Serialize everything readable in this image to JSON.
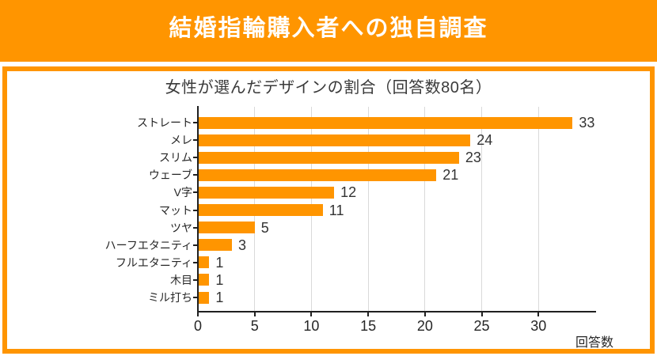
{
  "header": {
    "title": "結婚指輪購入者への独自調査"
  },
  "colors": {
    "accent": "#ff9500",
    "banner_text": "#ffffff",
    "text_dark": "#262626",
    "grid": "#d9d9d9"
  },
  "chart_data": {
    "type": "bar",
    "orientation": "horizontal",
    "title": "女性が選んだデザインの割合（回答数80名）",
    "categories": [
      "ストレート",
      "メレ",
      "スリム",
      "ウェーブ",
      "V字",
      "マット",
      "ツヤ",
      "ハーフエタニティ",
      "フルエタニティ",
      "木目",
      "ミル打ち"
    ],
    "values": [
      33,
      24,
      23,
      21,
      12,
      11,
      5,
      3,
      1,
      1,
      1
    ],
    "xlabel": "回答数",
    "xticks": [
      0,
      5,
      10,
      15,
      20,
      25,
      30
    ],
    "xlim": [
      0,
      35
    ],
    "grid": true,
    "legend": "none",
    "bar_color": "#ff9500",
    "value_labels": true
  }
}
